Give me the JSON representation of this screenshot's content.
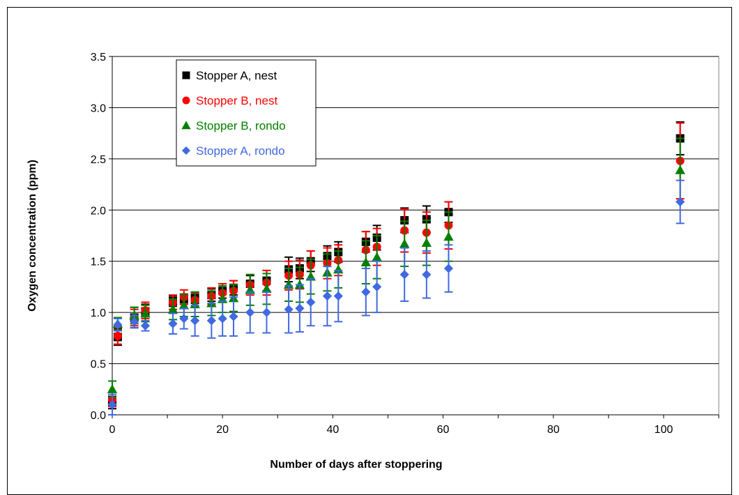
{
  "chart_data": {
    "type": "scatter",
    "title": "",
    "xlabel": "Number of days after stoppering",
    "ylabel": "Oxygen concentration (ppm)",
    "xlim": [
      0,
      110
    ],
    "ylim": [
      0,
      3.5
    ],
    "x_ticks": [
      "0",
      "20",
      "40",
      "60",
      "80",
      "100"
    ],
    "y_ticks": [
      "0.0",
      "0.5",
      "1.0",
      "1.5",
      "2.0",
      "2.5",
      "3.0",
      "3.5"
    ],
    "grid": "horizontal",
    "legend_position": "top-left",
    "series": [
      {
        "name": "Stopper A, nest",
        "color": "#000000",
        "marker": "square",
        "x": [
          0,
          1,
          4,
          6,
          11,
          13,
          15,
          18,
          20,
          22,
          25,
          28,
          32,
          34,
          36,
          39,
          41,
          46,
          48,
          53,
          57,
          61,
          103
        ],
        "y": [
          0.12,
          0.76,
          0.95,
          1.01,
          1.11,
          1.13,
          1.14,
          1.17,
          1.21,
          1.24,
          1.28,
          1.31,
          1.42,
          1.43,
          1.5,
          1.55,
          1.59,
          1.69,
          1.73,
          1.9,
          1.91,
          1.98,
          2.7
        ],
        "err": [
          0.06,
          0.08,
          0.1,
          0.07,
          0.05,
          0.05,
          0.05,
          0.06,
          0.07,
          0.07,
          0.08,
          0.1,
          0.12,
          0.1,
          0.1,
          0.1,
          0.1,
          0.1,
          0.12,
          0.12,
          0.13,
          0.1,
          0.16
        ]
      },
      {
        "name": "Stopper B, nest",
        "color": "#ff0000",
        "marker": "circle",
        "x": [
          0,
          1,
          4,
          6,
          11,
          13,
          15,
          18,
          20,
          22,
          25,
          28,
          32,
          34,
          36,
          39,
          41,
          46,
          48,
          53,
          57,
          61,
          103
        ],
        "y": [
          0.15,
          0.77,
          0.95,
          1.02,
          1.1,
          1.15,
          1.12,
          1.16,
          1.19,
          1.21,
          1.27,
          1.29,
          1.36,
          1.37,
          1.46,
          1.48,
          1.51,
          1.61,
          1.64,
          1.8,
          1.78,
          1.85,
          2.48
        ],
        "err": [
          0.07,
          0.08,
          0.08,
          0.08,
          0.07,
          0.07,
          0.07,
          0.08,
          0.09,
          0.1,
          0.1,
          0.12,
          0.14,
          0.14,
          0.14,
          0.15,
          0.15,
          0.18,
          0.18,
          0.21,
          0.2,
          0.23,
          0.37
        ]
      },
      {
        "name": "Stopper B, rondo",
        "color": "#008000",
        "marker": "triangle",
        "x": [
          0,
          1,
          4,
          6,
          11,
          13,
          15,
          18,
          20,
          22,
          25,
          28,
          32,
          34,
          36,
          39,
          41,
          46,
          48,
          53,
          57,
          61,
          103
        ],
        "y": [
          0.25,
          0.89,
          0.97,
          0.99,
          1.03,
          1.07,
          1.08,
          1.09,
          1.13,
          1.14,
          1.22,
          1.23,
          1.27,
          1.27,
          1.35,
          1.39,
          1.42,
          1.49,
          1.54,
          1.67,
          1.68,
          1.74,
          2.39
        ],
        "err": [
          0.08,
          0.06,
          0.08,
          0.08,
          0.1,
          0.11,
          0.12,
          0.12,
          0.13,
          0.13,
          0.15,
          0.15,
          0.16,
          0.17,
          0.17,
          0.18,
          0.18,
          0.21,
          0.21,
          0.22,
          0.22,
          0.24,
          0.31
        ]
      },
      {
        "name": "Stopper A, rondo",
        "color": "#4169e1",
        "marker": "diamond",
        "x": [
          0,
          1,
          4,
          6,
          11,
          13,
          15,
          18,
          20,
          22,
          25,
          28,
          32,
          34,
          36,
          39,
          41,
          46,
          48,
          53,
          57,
          61,
          103
        ],
        "y": [
          0.1,
          0.88,
          0.91,
          0.87,
          0.89,
          0.94,
          0.92,
          0.92,
          0.94,
          0.96,
          1.0,
          1.0,
          1.03,
          1.04,
          1.1,
          1.16,
          1.16,
          1.2,
          1.25,
          1.37,
          1.37,
          1.43,
          2.08
        ],
        "err": [
          0.1,
          0.06,
          0.06,
          0.05,
          0.1,
          0.1,
          0.15,
          0.17,
          0.17,
          0.19,
          0.2,
          0.2,
          0.23,
          0.23,
          0.23,
          0.29,
          0.25,
          0.23,
          0.25,
          0.26,
          0.23,
          0.23,
          0.21
        ]
      }
    ]
  }
}
